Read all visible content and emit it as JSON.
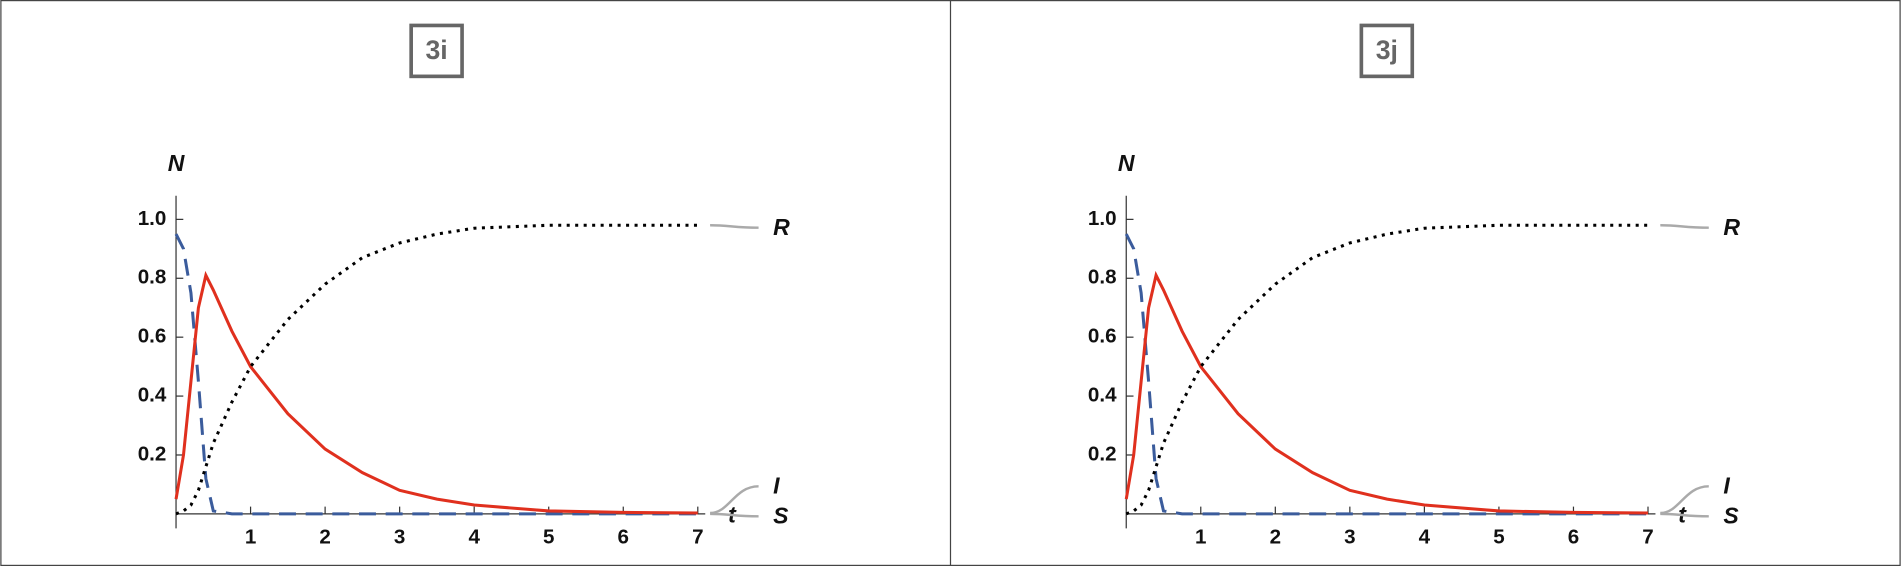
{
  "chart_data": [
    {
      "type": "line",
      "title": "3i",
      "x_label": "t",
      "y_label": "N",
      "x": [
        0,
        0.1,
        0.2,
        0.3,
        0.4,
        0.5,
        0.75,
        1,
        1.5,
        2,
        2.5,
        3,
        3.5,
        4,
        5,
        6,
        7
      ],
      "series": [
        {
          "name": "S",
          "color": "#3b5c9c",
          "values": [
            0.95,
            0.9,
            0.75,
            0.45,
            0.12,
            0.01,
            0,
            0,
            0,
            0,
            0,
            0,
            0,
            0,
            0,
            0,
            0
          ]
        },
        {
          "name": "I",
          "color": "#e0301e",
          "values": [
            0.05,
            0.2,
            0.45,
            0.7,
            0.81,
            0.76,
            0.62,
            0.5,
            0.34,
            0.22,
            0.14,
            0.08,
            0.05,
            0.03,
            0.01,
            0.005,
            0.003
          ]
        },
        {
          "name": "R",
          "color": "#000000",
          "values": [
            0,
            0.01,
            0.03,
            0.08,
            0.16,
            0.24,
            0.38,
            0.5,
            0.66,
            0.78,
            0.87,
            0.92,
            0.95,
            0.97,
            0.98,
            0.98,
            0.98
          ]
        }
      ],
      "xlim": [
        0,
        7.1
      ],
      "ylim": [
        0,
        1.08
      ],
      "xticks": [
        1,
        2,
        3,
        4,
        5,
        6,
        7
      ],
      "yticks": [
        0.2,
        0.4,
        0.6,
        0.8,
        {
          "value": 1,
          "label": "1.0"
        }
      ]
    },
    {
      "type": "line",
      "title": "3j",
      "x_label": "t",
      "y_label": "N",
      "x": [
        0,
        0.1,
        0.2,
        0.3,
        0.4,
        0.5,
        0.75,
        1,
        1.5,
        2,
        2.5,
        3,
        3.5,
        4,
        5,
        6,
        7
      ],
      "series": [
        {
          "name": "S",
          "color": "#3b5c9c",
          "values": [
            0.95,
            0.9,
            0.75,
            0.45,
            0.12,
            0.01,
            0,
            0,
            0,
            0,
            0,
            0,
            0,
            0,
            0,
            0,
            0
          ]
        },
        {
          "name": "I",
          "color": "#e0301e",
          "values": [
            0.05,
            0.2,
            0.45,
            0.7,
            0.81,
            0.76,
            0.62,
            0.5,
            0.34,
            0.22,
            0.14,
            0.08,
            0.05,
            0.03,
            0.01,
            0.005,
            0.003
          ]
        },
        {
          "name": "R",
          "color": "#000000",
          "values": [
            0,
            0.01,
            0.03,
            0.08,
            0.16,
            0.24,
            0.38,
            0.5,
            0.66,
            0.78,
            0.87,
            0.92,
            0.95,
            0.97,
            0.98,
            0.98,
            0.98
          ]
        }
      ],
      "xlim": [
        0,
        7.1
      ],
      "ylim": [
        0,
        1.08
      ],
      "xticks": [
        1,
        2,
        3,
        4,
        5,
        6,
        7
      ],
      "yticks": [
        0.2,
        0.4,
        0.6,
        0.8,
        {
          "value": 1,
          "label": "1.0"
        }
      ]
    }
  ]
}
